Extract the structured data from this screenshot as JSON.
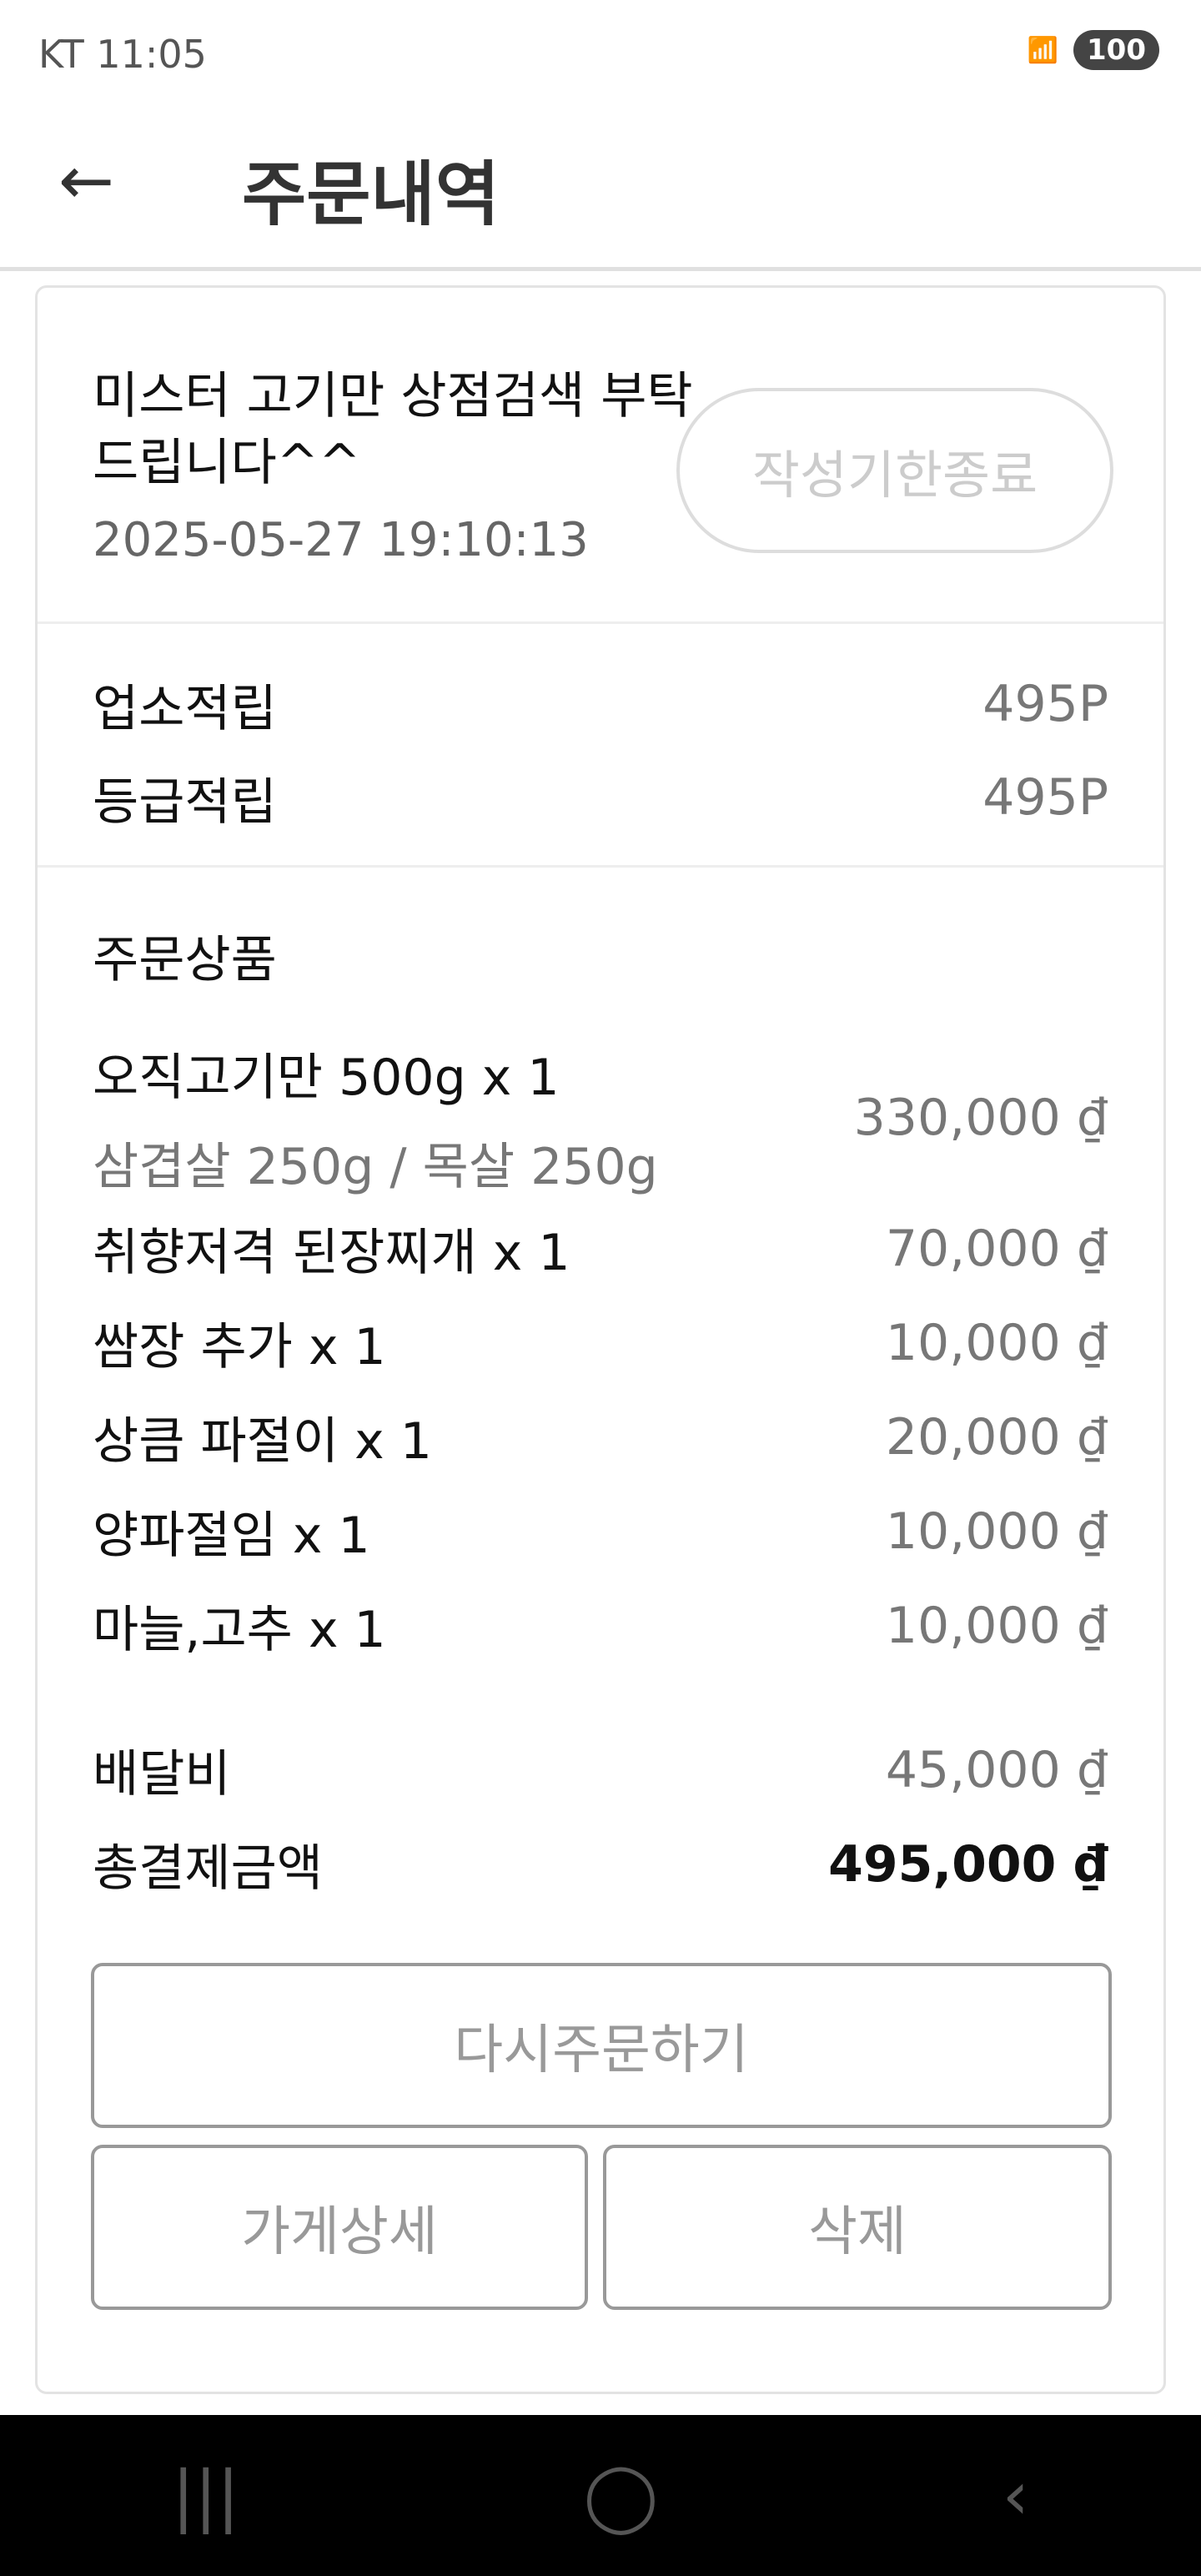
{
  "status_bar": {
    "carrier_time": "KT 11:05",
    "icons": [
      "screenshot-icon",
      "wifi-icon",
      "hd-voice-icon",
      "signal-icon"
    ],
    "battery": "100"
  },
  "header": {
    "title": "주문내역",
    "back_icon": "arrow-left-icon"
  },
  "order": {
    "store_request": "미스터 고기만 상점검색 부탁드립니다^^",
    "datetime": "2025-05-27 19:10:13",
    "review_button": "작성기한종료"
  },
  "points": [
    {
      "label": "업소적립",
      "value": "495P"
    },
    {
      "label": "등급적립",
      "value": "495P"
    }
  ],
  "products": {
    "heading": "주문상품",
    "items": [
      {
        "name": "오직고기만 500g x 1",
        "option": "삼겹살 250g / 목살 250g",
        "price": "330,000 ₫"
      },
      {
        "name": "취향저격 된장찌개 x 1",
        "price": "70,000 ₫"
      },
      {
        "name": "쌈장 추가 x 1",
        "price": "10,000 ₫"
      },
      {
        "name": "상큼 파절이 x 1",
        "price": "20,000 ₫"
      },
      {
        "name": "양파절임 x 1",
        "price": "10,000 ₫"
      },
      {
        "name": "마늘,고추 x 1",
        "price": "10,000 ₫"
      }
    ],
    "delivery_label": "배달비",
    "delivery_fee": "45,000 ₫",
    "total_label": "총결제금액",
    "total": "495,000 ₫"
  },
  "actions": {
    "reorder": "다시주문하기",
    "store_detail": "가게상세",
    "delete": "삭제"
  },
  "nav": {
    "recent": "|||",
    "home": "◯",
    "back": "‹"
  }
}
